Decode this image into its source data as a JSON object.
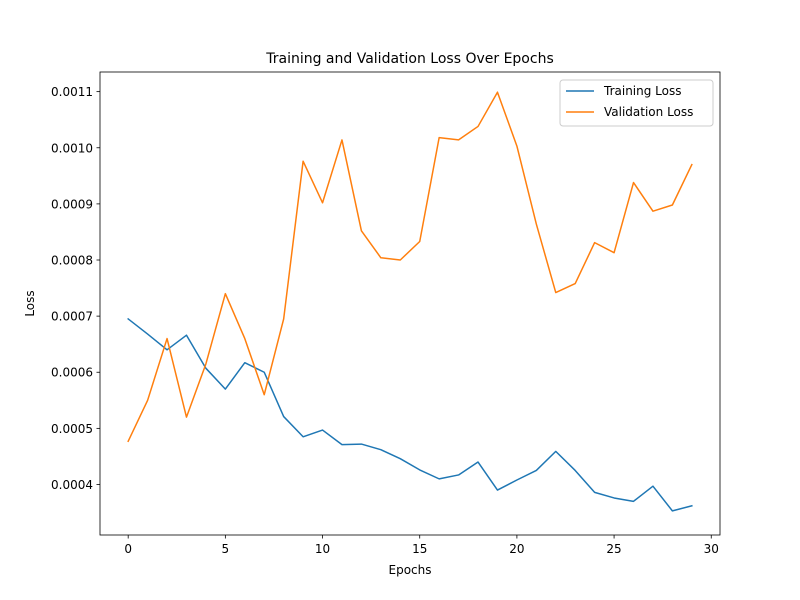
{
  "chart_data": {
    "type": "line",
    "title": "Training and Validation Loss Over Epochs",
    "xlabel": "Epochs",
    "ylabel": "Loss",
    "xlim": [
      -1.45,
      30.45
    ],
    "ylim": [
      0.00031,
      0.001135
    ],
    "xticks": [
      0,
      5,
      10,
      15,
      20,
      25,
      30
    ],
    "xtick_labels": [
      "0",
      "5",
      "10",
      "15",
      "20",
      "25",
      "30"
    ],
    "yticks": [
      0.0004,
      0.0005,
      0.0006,
      0.0007,
      0.0008,
      0.0009,
      0.001,
      0.0011
    ],
    "ytick_labels": [
      "0.0004",
      "0.0005",
      "0.0006",
      "0.0007",
      "0.0008",
      "0.0009",
      "0.0010",
      "0.0011"
    ],
    "grid": false,
    "legend_position": "top-right",
    "x": [
      0,
      1,
      2,
      3,
      4,
      5,
      6,
      7,
      8,
      9,
      10,
      11,
      12,
      13,
      14,
      15,
      16,
      17,
      18,
      19,
      20,
      21,
      22,
      23,
      24,
      25,
      26,
      27,
      28,
      29
    ],
    "series": [
      {
        "name": "Training Loss",
        "color": "#1f77b4",
        "values": [
          0.000695,
          0.000668,
          0.00064,
          0.000666,
          0.000607,
          0.00057,
          0.000617,
          0.0006,
          0.000521,
          0.000485,
          0.000497,
          0.000471,
          0.000472,
          0.000462,
          0.000446,
          0.000426,
          0.00041,
          0.000417,
          0.00044,
          0.00039,
          0.000408,
          0.000425,
          0.000459,
          0.000425,
          0.000386,
          0.000376,
          0.00037,
          0.000397,
          0.000353,
          0.000362
        ]
      },
      {
        "name": "Validation Loss",
        "color": "#ff7f0e",
        "values": [
          0.000477,
          0.00055,
          0.00066,
          0.00052,
          0.000615,
          0.00074,
          0.00066,
          0.00056,
          0.000695,
          0.000976,
          0.000902,
          0.001014,
          0.000852,
          0.000804,
          0.0008,
          0.000833,
          0.001018,
          0.001014,
          0.001038,
          0.001099,
          0.001003,
          0.000864,
          0.000742,
          0.000758,
          0.000831,
          0.000813,
          0.000938,
          0.000887,
          0.000898,
          0.00097
        ]
      }
    ]
  }
}
